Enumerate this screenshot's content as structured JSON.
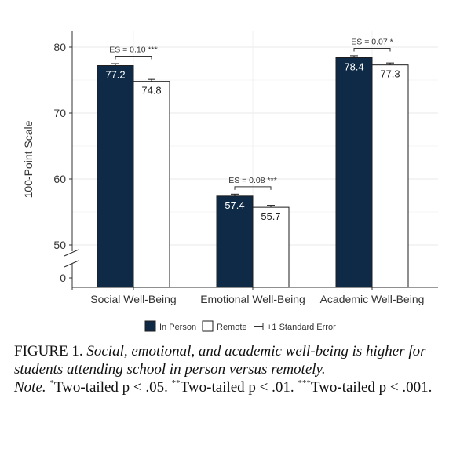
{
  "chart_data": {
    "type": "bar",
    "ylabel": "100-Point Scale",
    "yticks": [
      "0",
      "50",
      "60",
      "70",
      "80"
    ],
    "ylim_visible": [
      50,
      80
    ],
    "axis_break_below": 50,
    "categories": [
      "Social Well-Being",
      "Emotional Well-Being",
      "Academic Well-Being"
    ],
    "series": [
      {
        "name": "In Person",
        "values": [
          77.2,
          57.4,
          78.4
        ],
        "color": "#0e2a47",
        "value_label_color": "#ffffff"
      },
      {
        "name": "Remote",
        "values": [
          74.8,
          55.7,
          77.3
        ],
        "color": "#ffffff",
        "value_label_color": "#222222"
      }
    ],
    "value_labels": [
      [
        "77.2",
        "57.4",
        "78.4"
      ],
      [
        "74.8",
        "55.7",
        "77.3"
      ]
    ],
    "standard_errors": [
      [
        0.3,
        0.3,
        0.3
      ],
      [
        0.3,
        0.3,
        0.3
      ]
    ],
    "effect_sizes": [
      "ES = 0.10 ***",
      "ES = 0.08 ***",
      "ES = 0.07 *"
    ],
    "legend": {
      "items": [
        "In Person",
        "Remote"
      ],
      "error_label": "+1 Standard Error",
      "placement": "bottom"
    },
    "grid": true
  },
  "caption": {
    "figure_label": "FIGURE 1.",
    "title": "Social, emotional, and academic well-being is higher for students attending school in person versus remotely.",
    "note_label": "Note.",
    "p1_sup": "*",
    "p1_text": "Two-tailed",
    "p1_stat": "p < .05.",
    "p2_sup": "**",
    "p2_text": "Two-tailed",
    "p2_stat": "p < .01.",
    "p3_sup": "***",
    "p3_text": "Two-tailed",
    "p3_stat": "p < .001."
  }
}
